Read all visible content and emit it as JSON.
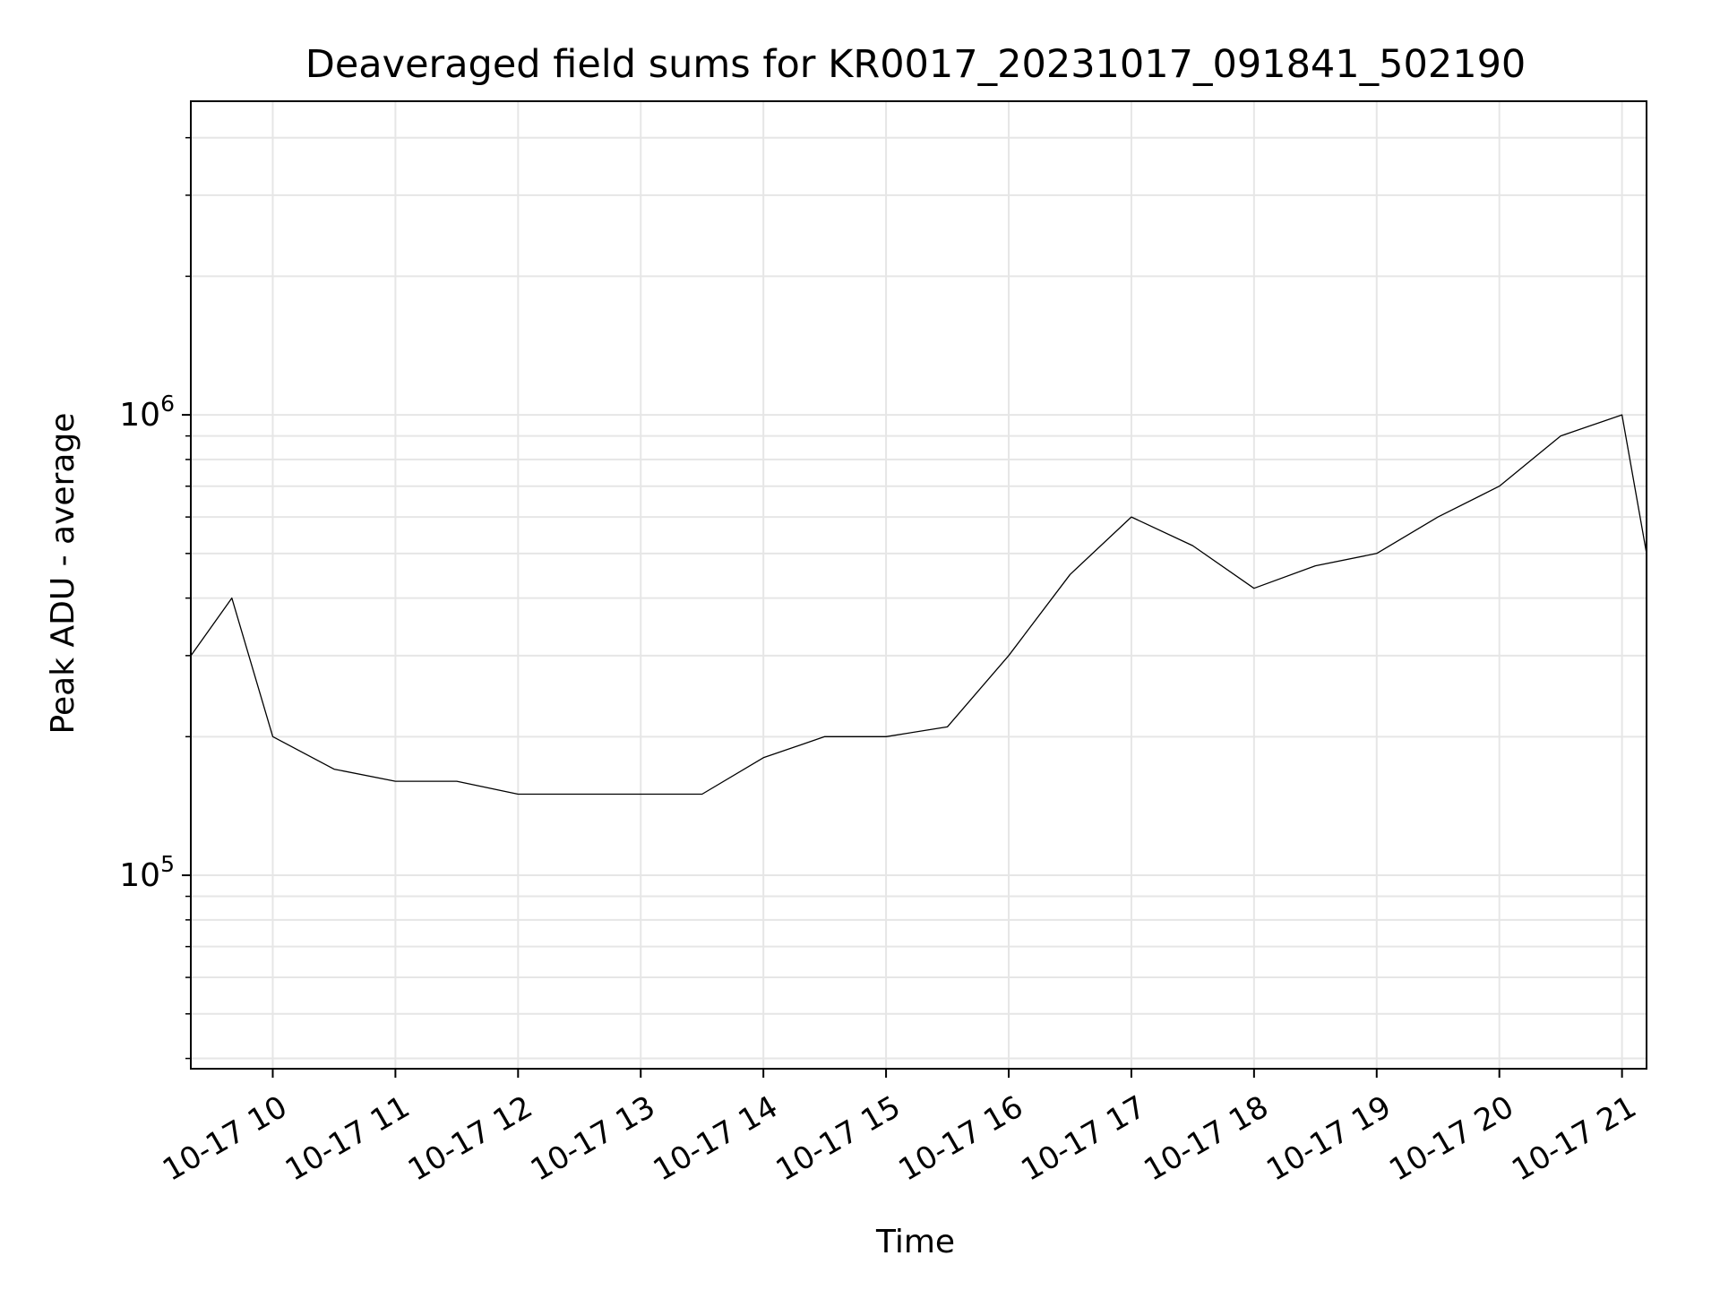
{
  "chart_data": {
    "type": "line",
    "title": "Deaveraged field sums for KR0017_20231017_091841_502190",
    "xlabel": "Time",
    "ylabel": "Peak ADU - average",
    "yscale": "log",
    "ylim": [
      38000,
      4800000
    ],
    "xlim": [
      "2023-10-17T09:19:55",
      "2023-10-17T21:12:00"
    ],
    "grid": true,
    "x_ticks": [
      {
        "at": "2023-10-17T10:00",
        "label": "10-17 10"
      },
      {
        "at": "2023-10-17T11:00",
        "label": "10-17 11"
      },
      {
        "at": "2023-10-17T12:00",
        "label": "10-17 12"
      },
      {
        "at": "2023-10-17T13:00",
        "label": "10-17 13"
      },
      {
        "at": "2023-10-17T14:00",
        "label": "10-17 14"
      },
      {
        "at": "2023-10-17T15:00",
        "label": "10-17 15"
      },
      {
        "at": "2023-10-17T16:00",
        "label": "10-17 16"
      },
      {
        "at": "2023-10-17T17:00",
        "label": "10-17 17"
      },
      {
        "at": "2023-10-17T18:00",
        "label": "10-17 18"
      },
      {
        "at": "2023-10-17T19:00",
        "label": "10-17 19"
      },
      {
        "at": "2023-10-17T20:00",
        "label": "10-17 20"
      },
      {
        "at": "2023-10-17T21:00",
        "label": "10-17 21"
      }
    ],
    "y_ticks": [
      {
        "value": 100000,
        "base": "10",
        "exp": "5"
      },
      {
        "value": 1000000,
        "base": "10",
        "exp": "6"
      }
    ],
    "series": [
      {
        "color": "#000000",
        "x": [
          "2023-10-17T09:20:00",
          "2023-10-17T09:40:00",
          "2023-10-17T10:00:00",
          "2023-10-17T10:30:00",
          "2023-10-17T11:00:00",
          "2023-10-17T11:30:00",
          "2023-10-17T12:00:00",
          "2023-10-17T12:30:00",
          "2023-10-17T13:00:00",
          "2023-10-17T13:30:00",
          "2023-10-17T14:00:00",
          "2023-10-17T14:30:00",
          "2023-10-17T15:00:00",
          "2023-10-17T15:30:00",
          "2023-10-17T16:00:00",
          "2023-10-17T16:30:00",
          "2023-10-17T17:00:00",
          "2023-10-17T17:30:00",
          "2023-10-17T18:00:00",
          "2023-10-17T18:30:00",
          "2023-10-17T19:00:00",
          "2023-10-17T19:30:00",
          "2023-10-17T20:00:00",
          "2023-10-17T20:30:00",
          "2023-10-17T21:00:00",
          "2023-10-17T21:12:00"
        ],
        "y": [
          300000,
          400000,
          200000,
          170000,
          160000,
          160000,
          150000,
          150000,
          150000,
          150000,
          180000,
          200000,
          200000,
          210000,
          300000,
          450000,
          600000,
          520000,
          420000,
          470000,
          500000,
          600000,
          700000,
          900000,
          1000000,
          500000
        ]
      }
    ]
  }
}
